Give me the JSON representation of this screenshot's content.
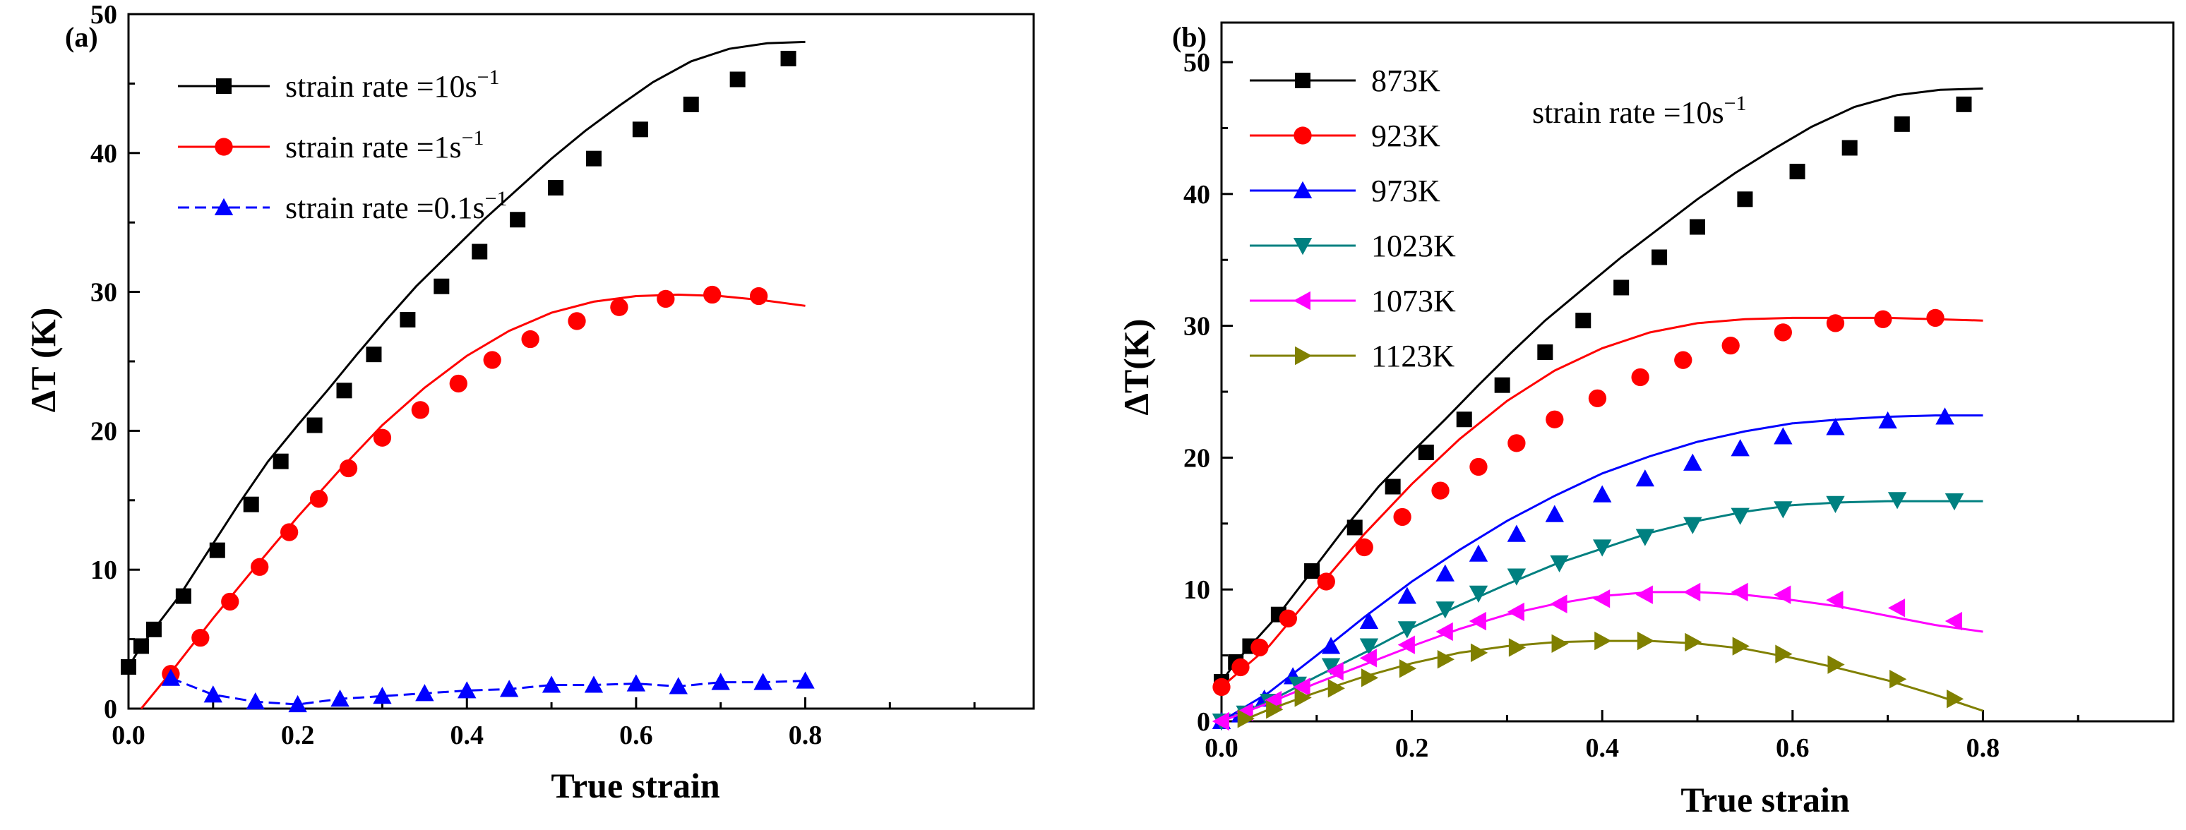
{
  "chart_data": [
    {
      "type": "line",
      "panel_label": "(a)",
      "xlabel": "True strain",
      "ylabel": "ΔT (K)",
      "xlim": [
        0.0,
        1.07
      ],
      "ylim": [
        0,
        50
      ],
      "xticks": [
        0.0,
        0.2,
        0.4,
        0.6,
        0.8
      ],
      "xtick_labels": [
        "0.0",
        "0.2",
        "0.4",
        "0.6",
        "0.8"
      ],
      "yticks": [
        0,
        10,
        20,
        30,
        40,
        50
      ],
      "ytick_labels": [
        "0",
        "10",
        "20",
        "30",
        "40",
        "50"
      ],
      "legend_position": "top-left",
      "series": [
        {
          "name": "strain rate =10s",
          "superscript": "−1",
          "color": "#000000",
          "marker": "square",
          "x": [
            0.0,
            0.015,
            0.03,
            0.06,
            0.095,
            0.13,
            0.165,
            0.2,
            0.235,
            0.27,
            0.305,
            0.34,
            0.38,
            0.42,
            0.46,
            0.5,
            0.54,
            0.58,
            0.62,
            0.665,
            0.71,
            0.755,
            0.8
          ],
          "y": [
            3.0,
            4.5,
            5.7,
            8.1,
            11.4,
            14.7,
            17.8,
            20.4,
            22.9,
            25.5,
            28.0,
            30.4,
            32.8,
            35.2,
            37.4,
            39.6,
            41.6,
            43.4,
            45.1,
            46.6,
            47.5,
            47.9,
            48.0
          ],
          "marker_x": [
            0.0,
            0.015,
            0.03,
            0.065,
            0.105,
            0.145,
            0.18,
            0.22,
            0.255,
            0.29,
            0.33,
            0.37,
            0.415,
            0.46,
            0.505,
            0.55,
            0.605,
            0.665,
            0.72,
            0.78
          ],
          "marker_y": [
            3.0,
            4.5,
            5.7,
            8.1,
            11.4,
            14.7,
            17.8,
            20.4,
            22.9,
            25.5,
            28.0,
            30.4,
            32.9,
            35.2,
            37.5,
            39.6,
            41.7,
            43.5,
            45.3,
            46.8
          ]
        },
        {
          "name": "strain rate =1s",
          "superscript": "−1",
          "color": "#ff0000",
          "marker": "circle",
          "x": [
            0.015,
            0.05,
            0.1,
            0.15,
            0.2,
            0.25,
            0.3,
            0.35,
            0.4,
            0.45,
            0.5,
            0.55,
            0.6,
            0.65,
            0.7,
            0.75,
            0.8
          ],
          "y": [
            0.0,
            2.6,
            6.5,
            10.2,
            13.8,
            17.2,
            20.4,
            23.1,
            25.4,
            27.2,
            28.5,
            29.3,
            29.7,
            29.8,
            29.7,
            29.4,
            29.0
          ],
          "marker_x": [
            0.05,
            0.085,
            0.12,
            0.155,
            0.19,
            0.225,
            0.26,
            0.3,
            0.345,
            0.39,
            0.43,
            0.475,
            0.53,
            0.58,
            0.635,
            0.69,
            0.745
          ],
          "marker_y": [
            2.5,
            5.1,
            7.7,
            10.2,
            12.7,
            15.1,
            17.3,
            19.5,
            21.5,
            23.4,
            25.1,
            26.6,
            27.9,
            28.9,
            29.5,
            29.8,
            29.7
          ]
        },
        {
          "name": "strain rate =0.1s",
          "superscript": "−1",
          "color": "#0000ff",
          "marker": "triangle-up",
          "x": [
            0.05,
            0.1,
            0.15,
            0.2,
            0.25,
            0.3,
            0.35,
            0.4,
            0.45,
            0.5,
            0.55,
            0.6,
            0.65,
            0.7,
            0.75,
            0.8
          ],
          "y": [
            2.2,
            1.0,
            0.5,
            0.3,
            0.7,
            0.9,
            1.1,
            1.3,
            1.4,
            1.7,
            1.7,
            1.8,
            1.6,
            1.9,
            1.9,
            2.0
          ],
          "marker_x": [
            0.05,
            0.1,
            0.15,
            0.2,
            0.25,
            0.3,
            0.35,
            0.4,
            0.45,
            0.5,
            0.55,
            0.6,
            0.65,
            0.7,
            0.75,
            0.8
          ],
          "marker_y": [
            2.2,
            1.0,
            0.5,
            0.3,
            0.7,
            0.9,
            1.1,
            1.3,
            1.4,
            1.7,
            1.7,
            1.8,
            1.6,
            1.9,
            1.9,
            2.0
          ]
        }
      ]
    },
    {
      "type": "line",
      "panel_label": "(b)",
      "xlabel": "True strain",
      "ylabel": "ΔT(K)",
      "annotation": "strain rate =10s",
      "annotation_superscript": "−1",
      "xlim": [
        0.0,
        1.0
      ],
      "ylim": [
        0,
        53
      ],
      "xticks": [
        0.0,
        0.2,
        0.4,
        0.6,
        0.8
      ],
      "xtick_labels": [
        "0.0",
        "0.2",
        "0.4",
        "0.6",
        "0.8"
      ],
      "yticks": [
        0,
        10,
        20,
        30,
        40,
        50
      ],
      "ytick_labels": [
        "0",
        "10",
        "20",
        "30",
        "40",
        "50"
      ],
      "legend_position": "top-left",
      "series": [
        {
          "name": "873K",
          "color": "#000000",
          "marker": "square",
          "x": [
            0.0,
            0.015,
            0.03,
            0.06,
            0.095,
            0.13,
            0.165,
            0.2,
            0.235,
            0.27,
            0.305,
            0.34,
            0.38,
            0.42,
            0.46,
            0.5,
            0.54,
            0.58,
            0.62,
            0.665,
            0.71,
            0.755,
            0.8
          ],
          "y": [
            3.0,
            4.5,
            5.7,
            8.1,
            11.4,
            14.7,
            17.8,
            20.4,
            22.9,
            25.5,
            28.0,
            30.4,
            32.8,
            35.2,
            37.4,
            39.6,
            41.6,
            43.4,
            45.1,
            46.6,
            47.5,
            47.9,
            48.0
          ],
          "marker_x": [
            0.0,
            0.015,
            0.03,
            0.06,
            0.095,
            0.14,
            0.18,
            0.215,
            0.255,
            0.295,
            0.34,
            0.38,
            0.42,
            0.46,
            0.5,
            0.55,
            0.605,
            0.66,
            0.715,
            0.78
          ],
          "marker_y": [
            3.0,
            4.5,
            5.7,
            8.1,
            11.4,
            14.7,
            17.8,
            20.4,
            22.9,
            25.5,
            28.0,
            30.4,
            32.9,
            35.2,
            37.5,
            39.6,
            41.7,
            43.5,
            45.3,
            46.8
          ]
        },
        {
          "name": "923K",
          "color": "#ff0000",
          "marker": "circle",
          "x": [
            0.0,
            0.05,
            0.1,
            0.15,
            0.2,
            0.25,
            0.3,
            0.35,
            0.4,
            0.45,
            0.5,
            0.55,
            0.6,
            0.65,
            0.7,
            0.75,
            0.8
          ],
          "y": [
            2.6,
            5.7,
            10.0,
            14.2,
            18.0,
            21.4,
            24.3,
            26.6,
            28.3,
            29.5,
            30.2,
            30.5,
            30.6,
            30.6,
            30.6,
            30.5,
            30.4
          ],
          "marker_x": [
            0.0,
            0.02,
            0.04,
            0.07,
            0.11,
            0.15,
            0.19,
            0.23,
            0.27,
            0.31,
            0.35,
            0.395,
            0.44,
            0.485,
            0.535,
            0.59,
            0.645,
            0.695,
            0.75
          ],
          "marker_y": [
            2.6,
            4.1,
            5.6,
            7.8,
            10.6,
            13.2,
            15.5,
            17.5,
            19.3,
            21.1,
            22.9,
            24.5,
            26.1,
            27.4,
            28.5,
            29.5,
            30.2,
            30.5,
            30.6
          ]
        },
        {
          "name": "973K",
          "color": "#0000ff",
          "marker": "triangle-up",
          "x": [
            0.0,
            0.05,
            0.1,
            0.15,
            0.2,
            0.25,
            0.3,
            0.35,
            0.4,
            0.45,
            0.5,
            0.55,
            0.6,
            0.65,
            0.7,
            0.75,
            0.8
          ],
          "y": [
            0.0,
            2.2,
            5.0,
            7.9,
            10.6,
            13.0,
            15.2,
            17.1,
            18.8,
            20.1,
            21.2,
            22.0,
            22.6,
            22.9,
            23.1,
            23.2,
            23.2
          ],
          "marker_x": [
            0.0,
            0.02,
            0.045,
            0.075,
            0.115,
            0.155,
            0.195,
            0.235,
            0.27,
            0.31,
            0.35,
            0.4,
            0.445,
            0.495,
            0.545,
            0.59,
            0.645,
            0.7,
            0.76
          ],
          "marker_y": [
            0.0,
            0.5,
            1.7,
            3.4,
            5.7,
            7.6,
            9.5,
            11.2,
            12.7,
            14.2,
            15.7,
            17.2,
            18.4,
            19.6,
            20.7,
            21.6,
            22.3,
            22.8,
            23.1
          ]
        },
        {
          "name": "1023K",
          "color": "#008080",
          "marker": "triangle-down",
          "x": [
            0.0,
            0.05,
            0.1,
            0.15,
            0.2,
            0.25,
            0.3,
            0.35,
            0.4,
            0.45,
            0.5,
            0.55,
            0.6,
            0.65,
            0.7,
            0.75,
            0.8
          ],
          "y": [
            0.0,
            1.5,
            3.4,
            5.2,
            7.1,
            8.8,
            10.4,
            11.9,
            13.1,
            14.3,
            15.2,
            15.9,
            16.4,
            16.6,
            16.7,
            16.7,
            16.7
          ],
          "marker_x": [
            0.0,
            0.025,
            0.05,
            0.08,
            0.115,
            0.155,
            0.195,
            0.235,
            0.27,
            0.31,
            0.355,
            0.4,
            0.445,
            0.495,
            0.545,
            0.59,
            0.645,
            0.71,
            0.77
          ],
          "marker_y": [
            0.0,
            0.6,
            1.5,
            2.8,
            4.2,
            5.7,
            7.0,
            8.5,
            9.7,
            11.0,
            12.0,
            13.2,
            14.0,
            14.9,
            15.6,
            16.1,
            16.5,
            16.8,
            16.7
          ]
        },
        {
          "name": "1073K",
          "color": "#ff00ff",
          "marker": "triangle-left",
          "x": [
            0.0,
            0.05,
            0.1,
            0.15,
            0.2,
            0.25,
            0.3,
            0.35,
            0.4,
            0.45,
            0.5,
            0.55,
            0.6,
            0.65,
            0.7,
            0.75,
            0.8
          ],
          "y": [
            0.0,
            1.4,
            2.9,
            4.3,
            5.7,
            7.0,
            8.1,
            8.9,
            9.5,
            9.8,
            9.8,
            9.6,
            9.2,
            8.7,
            8.0,
            7.3,
            6.8
          ],
          "marker_x": [
            0.0,
            0.025,
            0.055,
            0.085,
            0.12,
            0.155,
            0.195,
            0.235,
            0.27,
            0.31,
            0.355,
            0.4,
            0.445,
            0.495,
            0.545,
            0.59,
            0.645,
            0.71,
            0.77
          ],
          "marker_y": [
            0.0,
            0.7,
            1.6,
            2.6,
            3.8,
            4.8,
            5.8,
            6.8,
            7.6,
            8.3,
            8.9,
            9.3,
            9.6,
            9.8,
            9.8,
            9.6,
            9.2,
            8.6,
            7.6
          ]
        },
        {
          "name": "1123K",
          "color": "#808000",
          "marker": "triangle-right",
          "x": [
            0.02,
            0.05,
            0.1,
            0.15,
            0.2,
            0.25,
            0.3,
            0.35,
            0.4,
            0.45,
            0.5,
            0.55,
            0.6,
            0.65,
            0.7,
            0.75,
            0.8
          ],
          "y": [
            0.0,
            0.9,
            2.2,
            3.4,
            4.4,
            5.2,
            5.7,
            6.0,
            6.1,
            6.1,
            5.9,
            5.5,
            4.8,
            4.0,
            3.1,
            2.0,
            0.8
          ],
          "marker_x": [
            0.025,
            0.055,
            0.085,
            0.12,
            0.155,
            0.195,
            0.235,
            0.27,
            0.31,
            0.355,
            0.4,
            0.445,
            0.495,
            0.545,
            0.59,
            0.645,
            0.71,
            0.77
          ],
          "marker_y": [
            0.2,
            0.9,
            1.8,
            2.5,
            3.3,
            4.0,
            4.7,
            5.2,
            5.6,
            5.9,
            6.1,
            6.1,
            6.0,
            5.7,
            5.1,
            4.3,
            3.2,
            1.7
          ]
        }
      ]
    }
  ]
}
